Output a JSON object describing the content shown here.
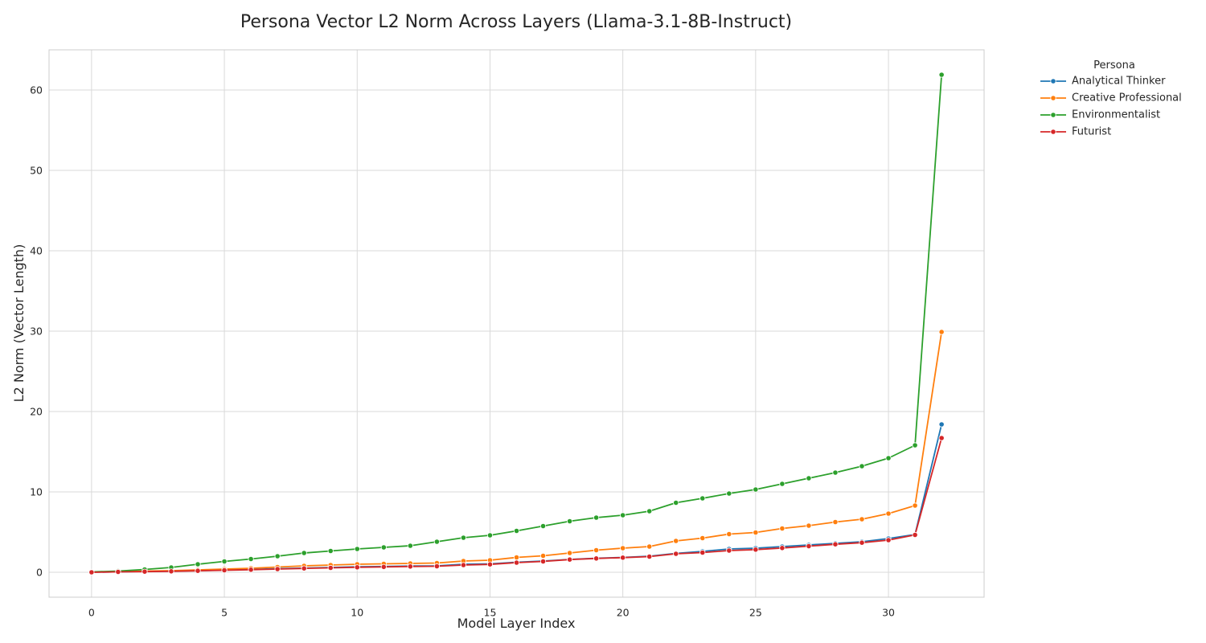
{
  "chart_data": {
    "type": "line",
    "title": "Persona Vector L2 Norm Across Layers (Llama-3.1-8B-Instruct)",
    "xlabel": "Model Layer Index",
    "ylabel": "L2 Norm (Vector Length)",
    "xlim": [
      -1.6,
      33.6
    ],
    "ylim": [
      -3.1,
      65
    ],
    "xticks": [
      0,
      5,
      10,
      15,
      20,
      25,
      30
    ],
    "yticks": [
      0,
      10,
      20,
      30,
      40,
      50,
      60
    ],
    "grid": true,
    "legend": {
      "title": "Persona",
      "placement": "outside-top-right"
    },
    "x": [
      0,
      1,
      2,
      3,
      4,
      5,
      6,
      7,
      8,
      9,
      10,
      11,
      12,
      13,
      14,
      15,
      16,
      17,
      18,
      19,
      20,
      21,
      22,
      23,
      24,
      25,
      26,
      27,
      28,
      29,
      30,
      31,
      32
    ],
    "series": [
      {
        "name": "Analytical Thinker",
        "color": "#1f77b4",
        "values": [
          0,
          0.05,
          0.1,
          0.15,
          0.2,
          0.28,
          0.36,
          0.45,
          0.52,
          0.6,
          0.68,
          0.72,
          0.78,
          0.8,
          1.0,
          1.05,
          1.25,
          1.4,
          1.6,
          1.75,
          1.85,
          2.0,
          2.35,
          2.6,
          2.9,
          3.0,
          3.2,
          3.4,
          3.6,
          3.8,
          4.2,
          4.7,
          18.4
        ]
      },
      {
        "name": "Creative Professional",
        "color": "#ff7f0e",
        "values": [
          0,
          0.1,
          0.15,
          0.2,
          0.3,
          0.4,
          0.5,
          0.65,
          0.8,
          0.9,
          1.0,
          1.05,
          1.1,
          1.15,
          1.4,
          1.5,
          1.85,
          2.05,
          2.4,
          2.75,
          3.0,
          3.2,
          3.9,
          4.25,
          4.75,
          4.95,
          5.45,
          5.8,
          6.25,
          6.6,
          7.3,
          8.3,
          29.9
        ]
      },
      {
        "name": "Environmentalist",
        "color": "#2ca02c",
        "values": [
          0.05,
          0.15,
          0.35,
          0.6,
          1.0,
          1.35,
          1.65,
          2.0,
          2.4,
          2.65,
          2.9,
          3.1,
          3.3,
          3.8,
          4.3,
          4.6,
          5.15,
          5.75,
          6.35,
          6.8,
          7.1,
          7.6,
          8.65,
          9.2,
          9.8,
          10.3,
          11.0,
          11.7,
          12.4,
          13.2,
          14.2,
          15.8,
          61.9
        ]
      },
      {
        "name": "Futurist",
        "color": "#d62728",
        "values": [
          0,
          0.05,
          0.08,
          0.12,
          0.18,
          0.25,
          0.32,
          0.4,
          0.48,
          0.55,
          0.62,
          0.67,
          0.72,
          0.75,
          0.9,
          0.98,
          1.2,
          1.35,
          1.58,
          1.72,
          1.82,
          1.95,
          2.3,
          2.45,
          2.7,
          2.82,
          3.02,
          3.25,
          3.48,
          3.68,
          4.0,
          4.65,
          16.7
        ]
      }
    ]
  }
}
